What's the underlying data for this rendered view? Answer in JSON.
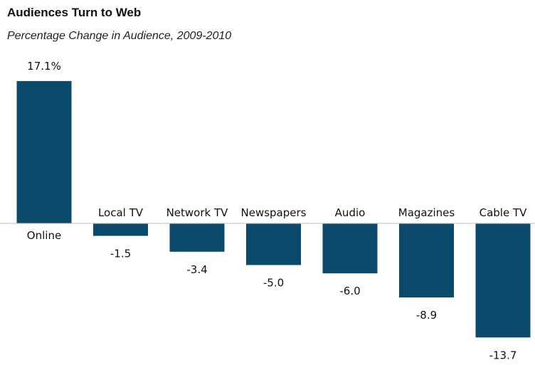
{
  "chart_data": {
    "type": "bar",
    "title": "Audiences Turn to Web",
    "subtitle": "Percentage Change in Audience, 2009-2010",
    "categories": [
      "Online",
      "Local TV",
      "Network TV",
      "Newspapers",
      "Audio",
      "Magazines",
      "Cable TV"
    ],
    "values": [
      17.1,
      -1.5,
      -3.4,
      -5.0,
      -6.0,
      -8.9,
      -13.7
    ],
    "data_labels": [
      "17.1%",
      "-1.5",
      "-3.4",
      "-5.0",
      "-6.0",
      "-8.9",
      "-13.7"
    ],
    "xlabel": "",
    "ylabel": "",
    "ylim": [
      -13.7,
      17.1
    ],
    "grid": false,
    "legend": "none",
    "bar_color": "#0b4a6a",
    "baseline_color": "#bfbfbf"
  }
}
